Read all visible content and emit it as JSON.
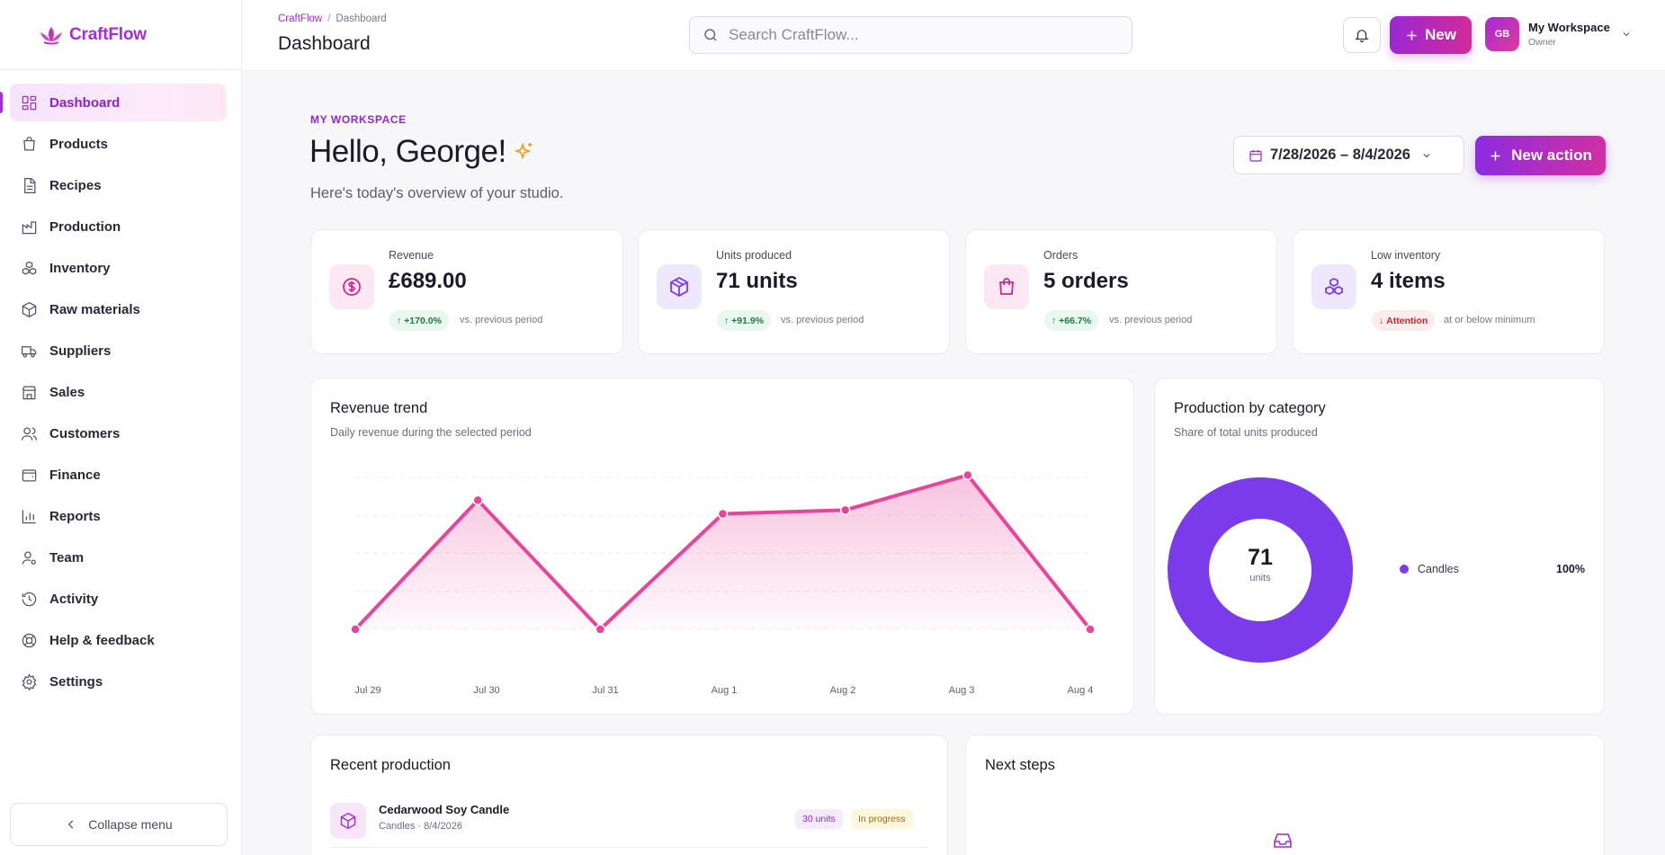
{
  "brand": {
    "name": "CraftFlow"
  },
  "sidebar": {
    "items": [
      {
        "label": "Dashboard",
        "icon": "dashboard-icon",
        "active": true
      },
      {
        "label": "Products",
        "icon": "bag-icon"
      },
      {
        "label": "Recipes",
        "icon": "document-icon"
      },
      {
        "label": "Production",
        "icon": "factory-icon"
      },
      {
        "label": "Inventory",
        "icon": "boxes-icon"
      },
      {
        "label": "Raw materials",
        "icon": "package-icon"
      },
      {
        "label": "Suppliers",
        "icon": "truck-icon"
      },
      {
        "label": "Sales",
        "icon": "store-icon"
      },
      {
        "label": "Customers",
        "icon": "users-icon"
      },
      {
        "label": "Finance",
        "icon": "wallet-icon"
      },
      {
        "label": "Reports",
        "icon": "bar-chart-icon"
      },
      {
        "label": "Team",
        "icon": "user-cog-icon"
      },
      {
        "label": "Activity",
        "icon": "history-icon"
      },
      {
        "label": "Help & feedback",
        "icon": "lifebuoy-icon"
      },
      {
        "label": "Settings",
        "icon": "gear-icon"
      }
    ],
    "collapse_label": "Collapse menu"
  },
  "topbar": {
    "breadcrumb": [
      "CraftFlow",
      "Dashboard"
    ],
    "title": "Dashboard",
    "search_placeholder": "Search CraftFlow...",
    "new_label": "New",
    "workspace": {
      "initials": "GB",
      "name": "My Workspace",
      "role": "Owner"
    }
  },
  "header": {
    "eyebrow": "MY WORKSPACE",
    "greeting": "Hello, George!",
    "subtitle": "Here's today's overview of your studio.",
    "date_range": "7/28/2026 – 8/4/2026",
    "action_label": "New action"
  },
  "kpis": [
    {
      "label": "Revenue",
      "value": "£689.00",
      "badge": "+170.0%",
      "trend": "up",
      "note": "vs. previous period",
      "icon": "dollar-icon",
      "icon_bg": "#fde7f3",
      "icon_color": "#d1278f"
    },
    {
      "label": "Units produced",
      "value": "71 units",
      "badge": "+91.9%",
      "trend": "up",
      "note": "vs. previous period",
      "icon": "cube-icon",
      "icon_bg": "#efe8fd",
      "icon_color": "#7b3bea"
    },
    {
      "label": "Orders",
      "value": "5 orders",
      "badge": "+66.7%",
      "trend": "up",
      "note": "vs. previous period",
      "icon": "shopping-bag-icon",
      "icon_bg": "#fde7f3",
      "icon_color": "#d1278f"
    },
    {
      "label": "Low inventory",
      "value": "4 items",
      "badge": "Attention",
      "trend": "down",
      "note": "at or below minimum",
      "icon": "boxes-icon",
      "icon_bg": "#efe8fd",
      "icon_color": "#7b3bea"
    }
  ],
  "revenue_trend": {
    "title": "Revenue trend",
    "subtitle": "Daily revenue during the selected period"
  },
  "production_by_category": {
    "title": "Production by category",
    "subtitle": "Share of total units produced",
    "total": "71",
    "total_unit": "units",
    "legend": [
      {
        "name": "Candles",
        "pct": "100%",
        "color": "#7b3bea"
      }
    ]
  },
  "chart_data": [
    {
      "type": "area",
      "title": "Revenue trend",
      "subtitle": "Daily revenue during the selected period",
      "categories": [
        "Jul 29",
        "Jul 30",
        "Jul 31",
        "Aug 1",
        "Aug 2",
        "Aug 3",
        "Aug 4"
      ],
      "x": [
        "Jul 29",
        "Jul 30",
        "Jul 31",
        "Aug 1",
        "Aug 2",
        "Aug 3",
        "Aug 4"
      ],
      "series": [
        {
          "values": [
            0,
            170,
            0,
            152,
            157,
            203,
            0
          ]
        }
      ],
      "ylim": [
        0,
        200
      ],
      "grid": true,
      "color": "#e8449a"
    },
    {
      "type": "pie",
      "title": "Production by category",
      "categories": [
        "Candles"
      ],
      "values": [
        71
      ],
      "color": "#7b3bea"
    }
  ],
  "recent_production": {
    "title": "Recent production",
    "rows": [
      {
        "name": "Cedarwood Soy Candle",
        "meta": "Candles · 8/4/2026",
        "units": "30 units",
        "status": "In progress"
      }
    ]
  },
  "next_steps": {
    "title": "Next steps"
  }
}
